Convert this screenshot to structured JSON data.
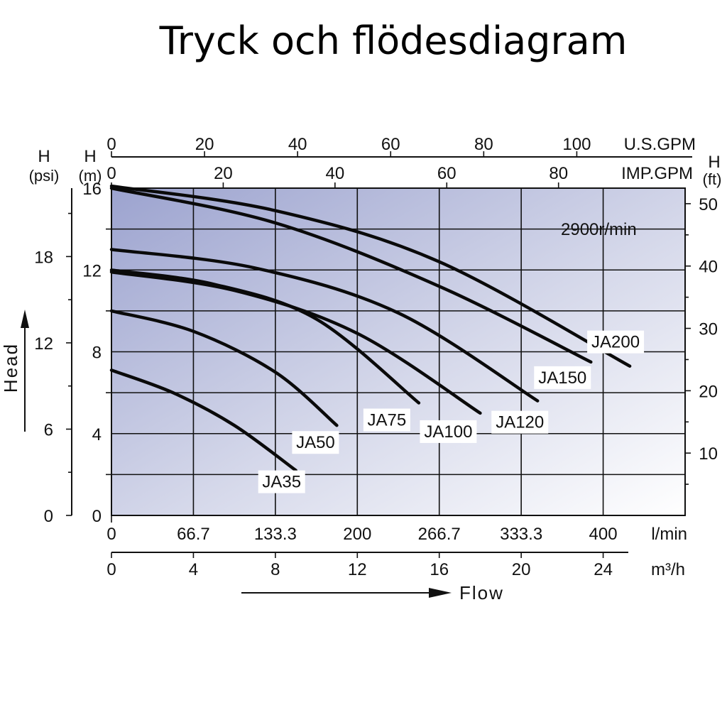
{
  "chart_data": {
    "type": "line",
    "title": "Tryck och flödesdiagram",
    "annotation": "2900r/min",
    "x_axis": {
      "label": "Flow",
      "range": [
        0,
        28
      ],
      "unit_m3h": "m³/h",
      "unit_lmin": "l/min",
      "ticks_m3h": [
        0,
        4,
        8,
        12,
        16,
        20,
        24
      ],
      "ticks_lmin": [
        {
          "v": 0,
          "label": "0"
        },
        {
          "v": 4,
          "label": "66.7"
        },
        {
          "v": 8,
          "label": "133.3"
        },
        {
          "v": 12,
          "label": "200"
        },
        {
          "v": 16,
          "label": "266.7"
        },
        {
          "v": 20,
          "label": "333.3"
        },
        {
          "v": 24,
          "label": "400"
        }
      ],
      "ticks_usgpm": [
        0,
        20,
        40,
        60,
        80,
        100
      ],
      "unit_usgpm": "U.S.GPM",
      "ticks_impgpm": [
        0,
        20,
        40,
        60,
        80
      ],
      "unit_impgpm": "IMP.GPM"
    },
    "y_axis": {
      "label": "Head",
      "range": [
        0,
        16
      ],
      "unit_m": "H",
      "unit_m_sub": "(m)",
      "ticks_m": [
        0,
        4,
        8,
        12,
        16
      ],
      "unit_psi": "H",
      "unit_psi_sub": "(psi)",
      "ticks_psi": [
        0,
        6,
        12,
        18
      ],
      "unit_ft": "H",
      "unit_ft_sub": "(ft)",
      "ticks_ft": [
        10,
        20,
        30,
        40,
        50
      ]
    },
    "series": [
      {
        "name": "JA35",
        "points": [
          [
            0,
            7.1
          ],
          [
            3,
            6.0
          ],
          [
            6,
            4.4
          ],
          [
            9,
            2.2
          ]
        ]
      },
      {
        "name": "JA50",
        "points": [
          [
            0,
            10.0
          ],
          [
            4,
            9.0
          ],
          [
            8,
            7.0
          ],
          [
            11,
            4.4
          ]
        ]
      },
      {
        "name": "JA75",
        "points": [
          [
            0,
            12.0
          ],
          [
            5,
            11.3
          ],
          [
            10,
            9.6
          ],
          [
            15,
            5.5
          ]
        ]
      },
      {
        "name": "JA100",
        "points": [
          [
            0,
            11.9
          ],
          [
            6,
            11.0
          ],
          [
            12,
            8.9
          ],
          [
            18,
            5.0
          ]
        ]
      },
      {
        "name": "JA120",
        "points": [
          [
            0,
            13.0
          ],
          [
            7,
            12.1
          ],
          [
            14,
            9.9
          ],
          [
            20.8,
            5.6
          ]
        ]
      },
      {
        "name": "JA150",
        "points": [
          [
            0,
            16.0
          ],
          [
            8,
            14.3
          ],
          [
            16,
            11.2
          ],
          [
            23.4,
            7.5
          ]
        ]
      },
      {
        "name": "JA200",
        "points": [
          [
            0,
            16.1
          ],
          [
            8,
            14.9
          ],
          [
            16,
            12.4
          ],
          [
            25.3,
            7.3
          ]
        ]
      }
    ]
  }
}
